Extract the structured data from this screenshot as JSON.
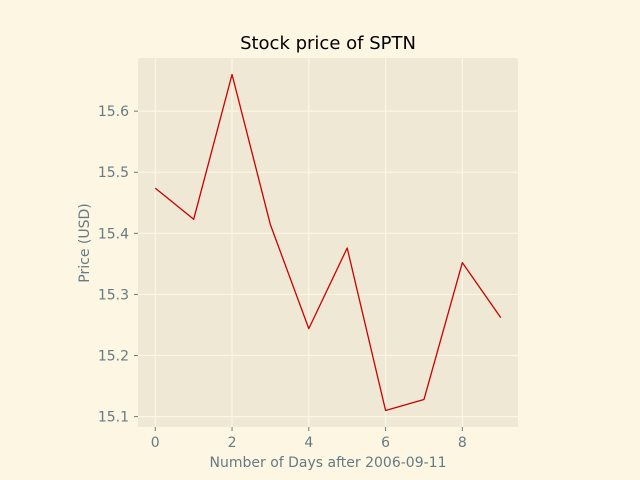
{
  "chart_data": {
    "type": "line",
    "title": "Stock price of SPTN",
    "xlabel": "Number of Days after 2006-09-11",
    "ylabel": "Price (USD)",
    "x": [
      0,
      1,
      2,
      3,
      4,
      5,
      6,
      7,
      8,
      9
    ],
    "series": [
      {
        "values": [
          15.474,
          15.423,
          15.66,
          15.414,
          15.244,
          15.376,
          15.11,
          15.128,
          15.352,
          15.262
        ],
        "color": "#cc0000"
      }
    ],
    "xlim": [
      -0.45,
      9.45
    ],
    "ylim": [
      15.083,
      15.687
    ],
    "xticks": [
      0,
      2,
      4,
      6,
      8
    ],
    "yticks": [
      15.1,
      15.2,
      15.3,
      15.4,
      15.5,
      15.6
    ],
    "ytick_labels": [
      "15.1",
      "15.2",
      "15.3",
      "15.4",
      "15.5",
      "15.6"
    ],
    "grid": true,
    "colors": {
      "page_background": "#fdf6e3",
      "plot_background": "#eee8d5",
      "grid": "#fdf6e3",
      "text": "#657b83"
    }
  }
}
